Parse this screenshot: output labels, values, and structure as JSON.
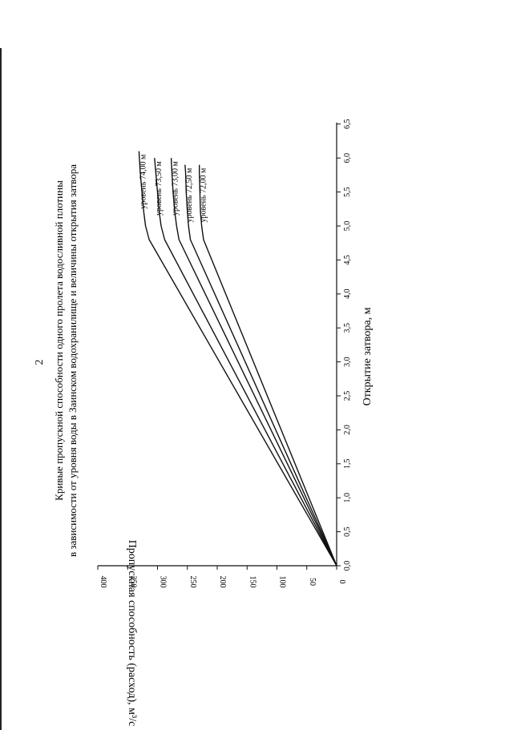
{
  "page_number": "2",
  "chart_data": {
    "type": "line",
    "title": "Кривые пропускной способности одного пролета водосливной плотины",
    "subtitle": "в зависимости от уровня воды в Заинском водохранилище и величины открытия затвора",
    "xlabel": "Открытие затвора, м",
    "ylabel": "Пропускная способность (расход), м³/с",
    "xlim": [
      0,
      6.5
    ],
    "ylim": [
      0,
      400
    ],
    "x_ticks": [
      "0,0",
      "0,5",
      "1,0",
      "1,5",
      "2,0",
      "2,5",
      "3,0",
      "3,5",
      "4,0",
      "4,5",
      "5,0",
      "5,5",
      "6,0",
      "6,5"
    ],
    "y_ticks": [
      "0",
      "50",
      "100",
      "150",
      "200",
      "250",
      "300",
      "350",
      "400"
    ],
    "grid": false,
    "series": [
      {
        "name": "уровень 74,00 м",
        "x": [
          0,
          4.8,
          5.0,
          5.2,
          5.5,
          5.8,
          6.1
        ],
        "y": [
          0,
          314,
          320,
          323,
          326,
          329,
          331
        ]
      },
      {
        "name": "уровень 73,50 м",
        "x": [
          0,
          4.8,
          5.0,
          5.2,
          5.5,
          5.8,
          6.0
        ],
        "y": [
          0,
          288,
          294,
          297,
          300,
          303,
          305
        ]
      },
      {
        "name": "уровень 73,00 м",
        "x": [
          0,
          4.8,
          5.0,
          5.2,
          5.5,
          5.8,
          6.0
        ],
        "y": [
          0,
          264,
          268,
          271,
          274,
          276,
          277
        ]
      },
      {
        "name": "уровень 72,50 м",
        "x": [
          0,
          4.8,
          5.0,
          5.2,
          5.5,
          5.8,
          5.9
        ],
        "y": [
          0,
          245,
          248,
          250,
          252,
          253,
          254
        ]
      },
      {
        "name": "уровень 72,00 м",
        "x": [
          0,
          4.8,
          5.0,
          5.2,
          5.5,
          5.8,
          5.9
        ],
        "y": [
          0,
          223,
          226,
          228,
          229,
          230,
          230
        ]
      }
    ]
  }
}
